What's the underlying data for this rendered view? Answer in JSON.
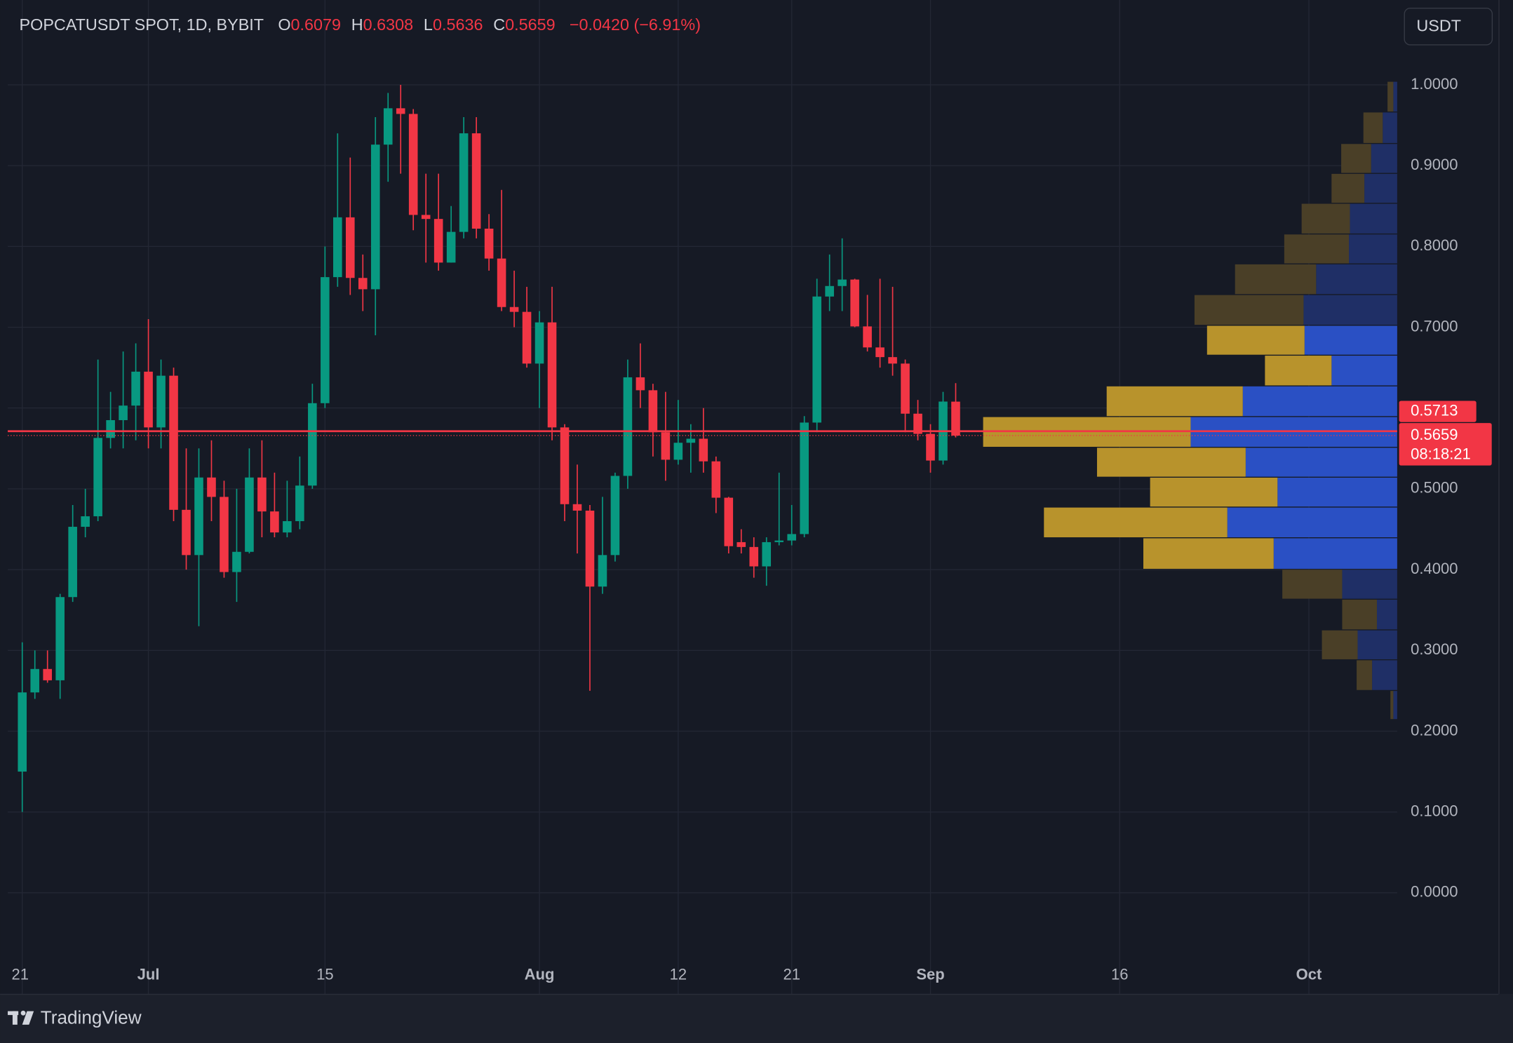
{
  "chart_data": {
    "type": "candlestick",
    "title": "POPCATUSDT SPOT, 1D, BYBIT",
    "ohlc_labels": [
      "O",
      "H",
      "L",
      "C"
    ],
    "change": "−0.0420 (−6.91%)",
    "x": [
      0,
      1,
      2,
      3,
      4,
      5,
      6,
      7,
      8,
      9,
      10,
      11,
      12,
      13,
      14,
      15,
      16,
      17,
      18,
      19,
      20,
      21,
      22,
      23,
      24,
      25,
      26,
      27,
      28,
      29,
      30,
      31,
      32,
      33,
      34,
      35,
      36,
      37,
      38,
      39,
      40,
      41,
      42,
      43,
      44,
      45,
      46,
      47,
      48,
      49,
      50,
      51,
      52,
      53,
      54,
      55,
      56,
      57,
      58,
      59,
      60,
      61,
      62,
      63,
      64,
      65,
      66,
      67,
      68,
      69,
      70,
      71,
      72,
      73,
      74
    ],
    "open": [
      0.15,
      0.248,
      0.277,
      0.263,
      0.366,
      0.453,
      0.466,
      0.563,
      0.585,
      0.603,
      0.645,
      0.576,
      0.64,
      0.474,
      0.418,
      0.514,
      0.49,
      0.397,
      0.422,
      0.514,
      0.472,
      0.446,
      0.46,
      0.504,
      0.606,
      0.762,
      0.836,
      0.761,
      0.747,
      0.926,
      0.971,
      0.964,
      0.839,
      0.834,
      0.78,
      0.818,
      0.94,
      0.822,
      0.785,
      0.725,
      0.719,
      0.655,
      0.706,
      0.576,
      0.481,
      0.473,
      0.379,
      0.418,
      0.516,
      0.638,
      0.622,
      0.57,
      0.536,
      0.557,
      0.562,
      0.534,
      0.489,
      0.434,
      0.428,
      0.404,
      0.434,
      0.436,
      0.444,
      0.582,
      0.738,
      0.751,
      0.759,
      0.701,
      0.675,
      0.663,
      0.655,
      0.593,
      0.568,
      0.535,
      0.6079
    ],
    "high": [
      0.31,
      0.3,
      0.3,
      0.37,
      0.48,
      0.5,
      0.66,
      0.62,
      0.67,
      0.68,
      0.71,
      0.66,
      0.65,
      0.55,
      0.55,
      0.56,
      0.51,
      0.5,
      0.55,
      0.56,
      0.52,
      0.51,
      0.54,
      0.63,
      0.8,
      0.94,
      0.91,
      0.79,
      0.96,
      0.99,
      1.0,
      0.97,
      0.89,
      0.89,
      0.85,
      0.96,
      0.96,
      0.84,
      0.87,
      0.77,
      0.75,
      0.72,
      0.75,
      0.58,
      0.53,
      0.48,
      0.49,
      0.52,
      0.66,
      0.68,
      0.63,
      0.62,
      0.61,
      0.58,
      0.6,
      0.54,
      0.49,
      0.45,
      0.44,
      0.44,
      0.52,
      0.48,
      0.59,
      0.76,
      0.79,
      0.81,
      0.76,
      0.74,
      0.76,
      0.75,
      0.66,
      0.61,
      0.58,
      0.62,
      0.6308
    ],
    "low": [
      0.1,
      0.24,
      0.26,
      0.24,
      0.36,
      0.44,
      0.46,
      0.55,
      0.55,
      0.56,
      0.55,
      0.55,
      0.46,
      0.4,
      0.33,
      0.46,
      0.39,
      0.36,
      0.42,
      0.44,
      0.44,
      0.44,
      0.45,
      0.5,
      0.6,
      0.75,
      0.74,
      0.72,
      0.69,
      0.88,
      0.89,
      0.82,
      0.78,
      0.77,
      0.78,
      0.81,
      0.81,
      0.77,
      0.72,
      0.7,
      0.65,
      0.6,
      0.56,
      0.46,
      0.42,
      0.25,
      0.37,
      0.41,
      0.5,
      0.6,
      0.54,
      0.51,
      0.53,
      0.52,
      0.52,
      0.47,
      0.42,
      0.42,
      0.39,
      0.38,
      0.43,
      0.43,
      0.44,
      0.57,
      0.72,
      0.72,
      0.7,
      0.67,
      0.65,
      0.64,
      0.57,
      0.56,
      0.52,
      0.53,
      0.5636
    ],
    "close": [
      0.248,
      0.277,
      0.263,
      0.366,
      0.453,
      0.466,
      0.563,
      0.585,
      0.603,
      0.645,
      0.576,
      0.64,
      0.474,
      0.418,
      0.514,
      0.49,
      0.397,
      0.422,
      0.514,
      0.472,
      0.446,
      0.46,
      0.504,
      0.606,
      0.762,
      0.836,
      0.761,
      0.747,
      0.926,
      0.971,
      0.964,
      0.839,
      0.834,
      0.78,
      0.818,
      0.94,
      0.822,
      0.785,
      0.725,
      0.719,
      0.655,
      0.706,
      0.576,
      0.481,
      0.473,
      0.379,
      0.418,
      0.516,
      0.638,
      0.622,
      0.57,
      0.536,
      0.557,
      0.562,
      0.534,
      0.489,
      0.429,
      0.428,
      0.404,
      0.434,
      0.436,
      0.444,
      0.582,
      0.738,
      0.751,
      0.759,
      0.701,
      0.675,
      0.663,
      0.655,
      0.593,
      0.568,
      0.535,
      0.608,
      0.5659
    ],
    "up_color": "#089981",
    "down_color": "#f23645",
    "xlim": [
      -1.15,
      109.0
    ],
    "ylim": [
      -0.125,
      1.105
    ],
    "xticks": [
      {
        "value": 0,
        "label": "21"
      },
      {
        "value": 10,
        "label": "Jul"
      },
      {
        "value": 24,
        "label": "15"
      },
      {
        "value": 41,
        "label": "Aug"
      },
      {
        "value": 52,
        "label": "12"
      },
      {
        "value": 61,
        "label": "21"
      },
      {
        "value": 72,
        "label": "Sep"
      },
      {
        "value": 87,
        "label": "16"
      },
      {
        "value": 102,
        "label": "Oct"
      }
    ],
    "yticks": [
      {
        "value": 0,
        "label": "0.0000"
      },
      {
        "value": 0.1,
        "label": "0.1000"
      },
      {
        "value": 0.2,
        "label": "0.2000"
      },
      {
        "value": 0.3,
        "label": "0.3000"
      },
      {
        "value": 0.4,
        "label": "0.4000"
      },
      {
        "value": 0.5,
        "label": "0.5000"
      },
      {
        "value": 0.6,
        "label": "0.6000"
      },
      {
        "value": 0.7,
        "label": "0.7000"
      },
      {
        "value": 0.8,
        "label": "0.8000"
      },
      {
        "value": 0.9,
        "label": "0.9000"
      },
      {
        "value": 1,
        "label": "1.0000"
      }
    ],
    "grid": true,
    "volume_profile": {
      "bins": [
        0.215,
        0.251,
        0.289,
        0.326,
        0.364,
        0.401,
        0.44,
        0.478,
        0.515,
        0.552,
        0.59,
        0.628,
        0.666,
        0.703,
        0.741,
        0.779,
        0.816,
        0.854,
        0.891,
        0.928,
        0.967,
        1.005
      ],
      "up": [
        4,
        26,
        41,
        21,
        57,
        128,
        176,
        124,
        157,
        214,
        160,
        68,
        96,
        97,
        84,
        50,
        49,
        34,
        27,
        15,
        4
      ],
      "down": [
        3,
        16,
        37,
        36,
        62,
        135,
        190,
        132,
        154,
        215,
        141,
        69,
        101,
        113,
        84,
        67,
        50,
        34,
        31,
        20,
        6
      ],
      "value_area": [
        0.401,
        0.703
      ],
      "up_color": "#2a50c4",
      "down_color": "#b8932c",
      "up_color_dim": "#1f2f66",
      "down_color_dim": "#4a3f27"
    },
    "poc": 0.5713,
    "last_price": 0.5659,
    "countdown": "08:18:21"
  },
  "ui": {
    "currency": "USDT",
    "brand": "TradingView"
  }
}
